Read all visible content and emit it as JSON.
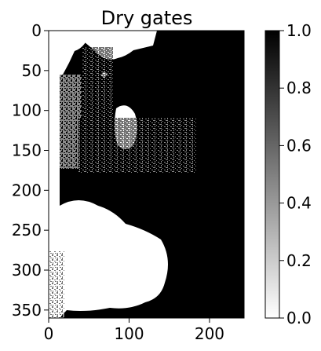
{
  "chart_data": {
    "type": "heatmap",
    "title": "Dry gates",
    "xlabel": "",
    "ylabel": "",
    "colormap": "gray_r",
    "x_range": [
      0,
      243
    ],
    "y_range": [
      0,
      360
    ],
    "y_inverted": true,
    "x_ticks": [
      "0",
      "100",
      "200"
    ],
    "x_tick_values": [
      0,
      100,
      200
    ],
    "y_ticks": [
      "0",
      "50",
      "100",
      "150",
      "200",
      "250",
      "300",
      "350"
    ],
    "y_tick_values": [
      0,
      50,
      100,
      150,
      200,
      250,
      300,
      350
    ],
    "colorbar": {
      "range": [
        0.0,
        1.0
      ],
      "ticks": [
        "0.0",
        "0.2",
        "0.4",
        "0.6",
        "0.8",
        "1.0"
      ],
      "tick_values": [
        0.0,
        0.2,
        0.4,
        0.6,
        0.8,
        1.0
      ],
      "placement": "right"
    },
    "grid": false,
    "colors": {
      "low": "#ffffff",
      "high": "#000000"
    }
  }
}
